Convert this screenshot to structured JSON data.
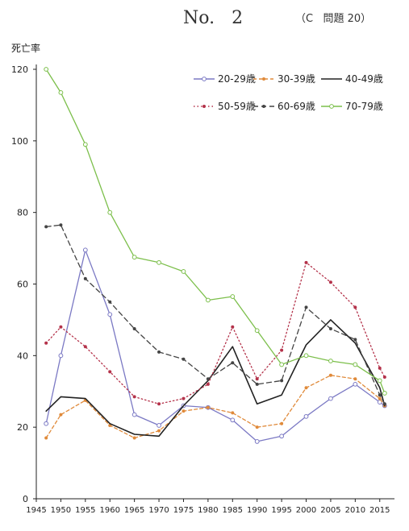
{
  "header": {
    "number_label": "No.   2",
    "problem_label": "（C   問題 20）"
  },
  "chart_data": {
    "type": "line",
    "title": "",
    "ylabel": "死亡率",
    "xlabel": "",
    "xlim": [
      1945,
      2018
    ],
    "ylim": [
      0,
      120
    ],
    "xticks": [
      1945,
      1950,
      1955,
      1960,
      1965,
      1970,
      1975,
      1980,
      1985,
      1990,
      1995,
      2000,
      2005,
      2010,
      2015
    ],
    "yticks": [
      0,
      20,
      40,
      60,
      80,
      100,
      120
    ],
    "grid": false,
    "legend_position": "top-right",
    "x": [
      1947,
      1950,
      1955,
      1960,
      1965,
      1970,
      1975,
      1980,
      1985,
      1990,
      1995,
      2000,
      2005,
      2010,
      2015,
      2016
    ],
    "series": [
      {
        "name": "20-29歳",
        "color": "#7b79c4",
        "dash": "",
        "marker": "open",
        "values": [
          21,
          40,
          69.5,
          51.5,
          23.5,
          20.5,
          26,
          25.5,
          22,
          16,
          17.5,
          23,
          28,
          32,
          27,
          26
        ]
      },
      {
        "name": "30-39歳",
        "color": "#e08a3a",
        "dash": "4 3",
        "marker": "dot",
        "values": [
          17,
          23.5,
          27.5,
          20.5,
          17,
          19,
          24.5,
          25.5,
          24,
          20,
          21,
          31,
          34.5,
          33.5,
          28,
          26
        ]
      },
      {
        "name": "40-49歳",
        "color": "#222222",
        "dash": "",
        "marker": "none",
        "values": [
          24.5,
          28.5,
          28,
          21,
          18,
          17.5,
          26,
          33,
          42.5,
          26.5,
          29,
          43,
          50,
          43.5,
          31,
          26
        ]
      },
      {
        "name": "50-59歳",
        "color": "#b4324a",
        "dash": "1.5 3",
        "marker": "dot",
        "values": [
          43.5,
          48,
          42.5,
          35.5,
          28.5,
          26.5,
          28,
          32,
          48,
          33.5,
          41.5,
          66,
          60.5,
          53.5,
          36.5,
          34
        ]
      },
      {
        "name": "60-69歳",
        "color": "#444444",
        "dash": "6 4",
        "marker": "dot",
        "values": [
          76,
          76.5,
          61.5,
          55,
          47.5,
          41,
          39,
          33.5,
          38,
          32,
          33,
          53.5,
          47.5,
          44.5,
          29,
          26.5
        ]
      },
      {
        "name": "70-79歳",
        "color": "#7cbf4b",
        "dash": "",
        "marker": "open",
        "values": [
          120,
          113.5,
          99,
          80,
          67.5,
          66,
          63.5,
          55.5,
          56.5,
          47,
          37.5,
          40,
          38.5,
          37.5,
          33,
          29.5
        ]
      }
    ]
  }
}
